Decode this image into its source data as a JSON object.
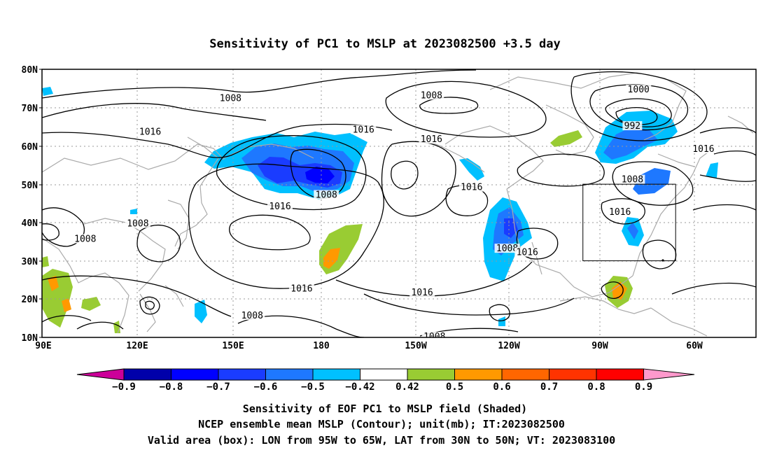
{
  "title": "Sensitivity of PC1 to MSLP at 2023082500 +3.5 day",
  "map": {
    "lon_labels": [
      "90E",
      "120E",
      "150E",
      "180",
      "150W",
      "120W",
      "90W",
      "60W"
    ],
    "lat_labels": [
      "80N",
      "70N",
      "60N",
      "50N",
      "40N",
      "30N",
      "20N",
      "10N"
    ],
    "contour_labels": [
      {
        "text": "1008",
        "lon": 151,
        "lat": 72.2
      },
      {
        "text": "1016",
        "lon": 125,
        "lat": 63.5
      },
      {
        "text": "1016",
        "lon": 194,
        "lat": 64
      },
      {
        "text": "1008",
        "lon": 216,
        "lat": 73
      },
      {
        "text": "1016",
        "lon": 216,
        "lat": 61.5
      },
      {
        "text": "1008",
        "lon": 182,
        "lat": 47
      },
      {
        "text": "1016",
        "lon": 167,
        "lat": 44
      },
      {
        "text": "1008",
        "lon": 121,
        "lat": 39.5
      },
      {
        "text": "1008",
        "lon": 104,
        "lat": 35.5
      },
      {
        "text": "1016",
        "lon": 229,
        "lat": 49
      },
      {
        "text": "1000",
        "lon": 283,
        "lat": 74.5
      },
      {
        "text": "992",
        "lon": 281,
        "lat": 65
      },
      {
        "text": "1008",
        "lon": 281,
        "lat": 51
      },
      {
        "text": "1016",
        "lon": 277,
        "lat": 42.5
      },
      {
        "text": "1016",
        "lon": 304,
        "lat": 59
      },
      {
        "text": "1008",
        "lon": 240.5,
        "lat": 33
      },
      {
        "text": "1016",
        "lon": 247,
        "lat": 32
      },
      {
        "text": "1016",
        "lon": 174,
        "lat": 22.5
      },
      {
        "text": "1016",
        "lon": 213,
        "lat": 21.5
      },
      {
        "text": "1008",
        "lon": 158,
        "lat": 15.5
      },
      {
        "text": "1008",
        "lon": 217,
        "lat": 10
      }
    ],
    "valid_box": {
      "lon_min": 265,
      "lon_max": 295,
      "lat_min": 30,
      "lat_max": 50
    }
  },
  "colorbar": {
    "labels": [
      "−0.9",
      "−0.8",
      "−0.7",
      "−0.6",
      "−0.5",
      "−0.42",
      "0.42",
      "0.5",
      "0.6",
      "0.7",
      "0.8",
      "0.9"
    ],
    "colors": [
      "#0000aa",
      "#0000ff",
      "#1a3cff",
      "#1e78ff",
      "#00c0ff",
      "#ffffff",
      "#99cc33",
      "#ff9900",
      "#ff6600",
      "#ff3300",
      "#ff0000"
    ],
    "low_extend_color": "#cc0099",
    "high_extend_color": "#ff99cc"
  },
  "captions": [
    "Sensitivity of EOF PC1 to MSLP field (Shaded)",
    "NCEP ensemble mean MSLP (Contour); unit(mb); IT:2023082500",
    "Valid area (box): LON from 95W to 65W, LAT from 30N to 50N; VT: 2023083100"
  ],
  "colors": {
    "grid": "#999999",
    "coast": "#aaaaaa",
    "contour": "#000000",
    "light_blue": "#00c0ff",
    "mid_blue": "#1e78ff",
    "dark_blue": "#1a3cff",
    "green": "#99cc33",
    "orange": "#ff9900"
  }
}
